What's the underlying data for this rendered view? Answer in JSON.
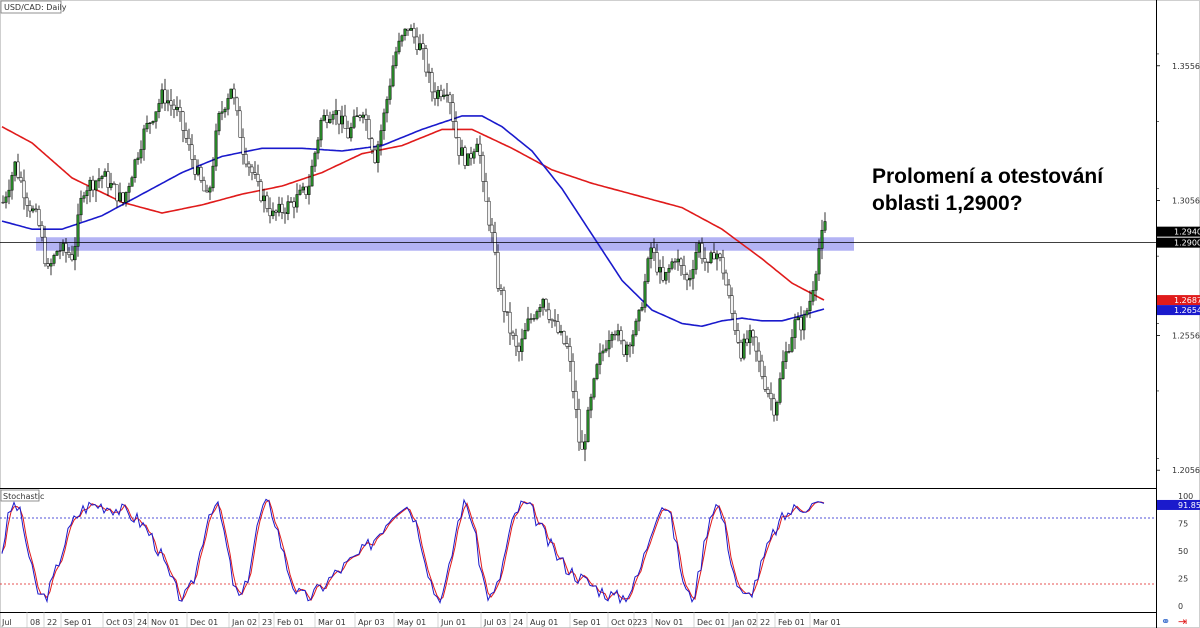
{
  "chart_data": {
    "type": "candlestick",
    "title": "USD/CAD: Daily",
    "annotation": [
      "Prolomení a otestování",
      "oblasti 1,2900?"
    ],
    "y_ticks": [
      "1.3556",
      "1.3056",
      "1.2556",
      "1.2056"
    ],
    "x_ticks": [
      "Jul",
      "08",
      "22",
      "Sep 01",
      "Oct 03",
      "24",
      "Nov 01",
      "Dec 01",
      "Jan 02",
      "23",
      "Feb 01",
      "Mar 01",
      "Apr 03",
      "May 01",
      "Jun 01",
      "Jul 03",
      "24",
      "Aug 01",
      "Sep 01",
      "Oct 02",
      "23",
      "Nov 01",
      "Dec 01",
      "Jan 02",
      "22",
      "Feb 01",
      "Mar 01"
    ],
    "price_labels": [
      {
        "text": "1.2940",
        "value": 1.294,
        "color": "#000000"
      },
      {
        "text": "1.2900",
        "value": 1.29,
        "color": "#000000"
      },
      {
        "text": "1.2687",
        "value": 1.2687,
        "color": "#e01b1b"
      },
      {
        "text": "1.2654",
        "value": 1.2654,
        "color": "#1a1acc"
      }
    ],
    "zone": {
      "low": 1.287,
      "high": 1.292,
      "color": "#9a9af0"
    },
    "horizontal_line": 1.29,
    "ylim": [
      1.199,
      1.38
    ],
    "ma_slow": {
      "color": "#e01b1b",
      "knots": [
        [
          0,
          1.333
        ],
        [
          30,
          1.327
        ],
        [
          70,
          1.314
        ],
        [
          120,
          1.305
        ],
        [
          160,
          1.301
        ],
        [
          200,
          1.304
        ],
        [
          240,
          1.308
        ],
        [
          280,
          1.311
        ],
        [
          320,
          1.316
        ],
        [
          360,
          1.323
        ],
        [
          400,
          1.326
        ],
        [
          440,
          1.332
        ],
        [
          470,
          1.332
        ],
        [
          510,
          1.325
        ],
        [
          550,
          1.317
        ],
        [
          590,
          1.312
        ],
        [
          630,
          1.308
        ],
        [
          680,
          1.303
        ],
        [
          720,
          1.295
        ],
        [
          760,
          1.284
        ],
        [
          790,
          1.275
        ],
        [
          822,
          1.2687
        ]
      ]
    },
    "ma_fast": {
      "color": "#1a1acc",
      "knots": [
        [
          0,
          1.298
        ],
        [
          30,
          1.295
        ],
        [
          60,
          1.295
        ],
        [
          100,
          1.3
        ],
        [
          140,
          1.308
        ],
        [
          180,
          1.316
        ],
        [
          220,
          1.322
        ],
        [
          260,
          1.325
        ],
        [
          300,
          1.325
        ],
        [
          340,
          1.324
        ],
        [
          380,
          1.326
        ],
        [
          420,
          1.332
        ],
        [
          460,
          1.337
        ],
        [
          480,
          1.337
        ],
        [
          500,
          1.333
        ],
        [
          530,
          1.324
        ],
        [
          560,
          1.31
        ],
        [
          590,
          1.293
        ],
        [
          620,
          1.276
        ],
        [
          650,
          1.265
        ],
        [
          680,
          1.26
        ],
        [
          700,
          1.259
        ],
        [
          720,
          1.261
        ],
        [
          740,
          1.262
        ],
        [
          760,
          1.261
        ],
        [
          780,
          1.261
        ],
        [
          800,
          1.263
        ],
        [
          822,
          1.2654
        ]
      ]
    },
    "price_path": [
      [
        0,
        1.305
      ],
      [
        12,
        1.319
      ],
      [
        25,
        1.305
      ],
      [
        35,
        1.298
      ],
      [
        45,
        1.279
      ],
      [
        55,
        1.288
      ],
      [
        70,
        1.285
      ],
      [
        80,
        1.31
      ],
      [
        100,
        1.315
      ],
      [
        120,
        1.305
      ],
      [
        140,
        1.33
      ],
      [
        160,
        1.345
      ],
      [
        175,
        1.338
      ],
      [
        190,
        1.32
      ],
      [
        205,
        1.305
      ],
      [
        215,
        1.335
      ],
      [
        228,
        1.348
      ],
      [
        240,
        1.325
      ],
      [
        255,
        1.31
      ],
      [
        270,
        1.3
      ],
      [
        290,
        1.305
      ],
      [
        305,
        1.31
      ],
      [
        318,
        1.335
      ],
      [
        330,
        1.34
      ],
      [
        345,
        1.33
      ],
      [
        360,
        1.34
      ],
      [
        372,
        1.322
      ],
      [
        380,
        1.335
      ],
      [
        392,
        1.36
      ],
      [
        405,
        1.37
      ],
      [
        418,
        1.362
      ],
      [
        430,
        1.345
      ],
      [
        445,
        1.348
      ],
      [
        455,
        1.325
      ],
      [
        465,
        1.32
      ],
      [
        475,
        1.33
      ],
      [
        480,
        1.31
      ],
      [
        488,
        1.295
      ],
      [
        495,
        1.275
      ],
      [
        505,
        1.26
      ],
      [
        515,
        1.248
      ],
      [
        525,
        1.26
      ],
      [
        540,
        1.27
      ],
      [
        550,
        1.26
      ],
      [
        565,
        1.25
      ],
      [
        572,
        1.23
      ],
      [
        578,
        1.21
      ],
      [
        585,
        1.225
      ],
      [
        595,
        1.245
      ],
      [
        610,
        1.26
      ],
      [
        620,
        1.25
      ],
      [
        635,
        1.26
      ],
      [
        648,
        1.288
      ],
      [
        660,
        1.275
      ],
      [
        672,
        1.285
      ],
      [
        685,
        1.275
      ],
      [
        695,
        1.29
      ],
      [
        705,
        1.28
      ],
      [
        712,
        1.288
      ],
      [
        720,
        1.28
      ],
      [
        728,
        1.265
      ],
      [
        738,
        1.25
      ],
      [
        748,
        1.255
      ],
      [
        760,
        1.24
      ],
      [
        772,
        1.228
      ],
      [
        780,
        1.245
      ],
      [
        792,
        1.26
      ],
      [
        800,
        1.26
      ],
      [
        808,
        1.27
      ],
      [
        816,
        1.288
      ],
      [
        822,
        1.296
      ]
    ],
    "stochastic": {
      "label": "Stochastic",
      "y_ticks": [
        "100",
        "75",
        "50",
        "25",
        "0"
      ],
      "last_value": "91.85",
      "levels": [
        80,
        20
      ],
      "k_color": "#1a1acc",
      "d_color": "#e01b1b",
      "range": [
        0,
        100
      ]
    }
  }
}
